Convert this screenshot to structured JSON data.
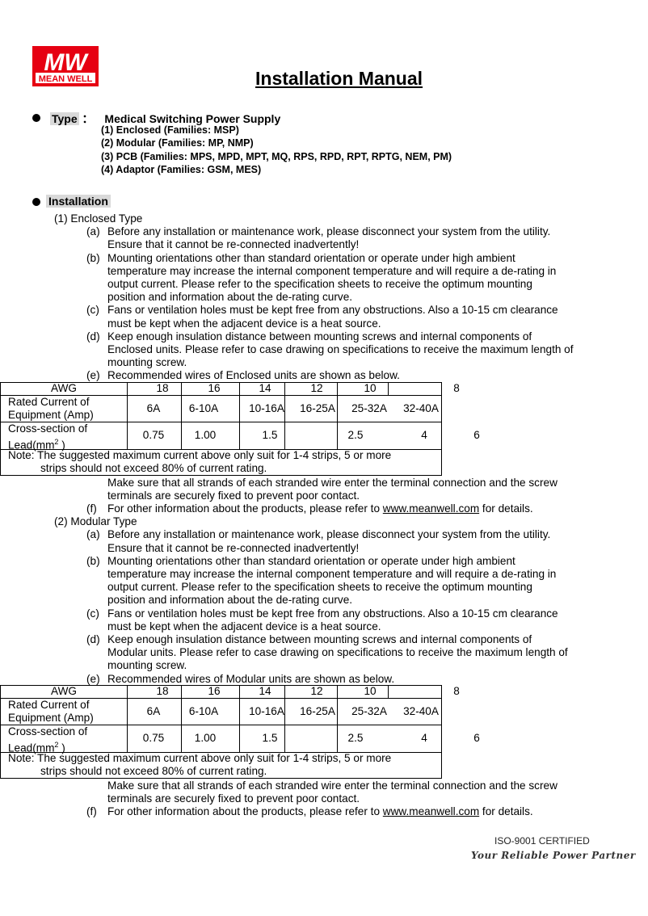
{
  "logo": {
    "text": "MW",
    "subtext": "MEAN WELL",
    "color": "#e60012"
  },
  "title": "Installation Manual",
  "type": {
    "label": "Type",
    "sep": "：",
    "value": "Medical Switching Power Supply",
    "items": [
      "(1)  Enclosed (Families: MSP)",
      "(2)  Modular (Families: MP, NMP)",
      "(3)   PCB (Families: MPS, MPD, MPT, MQ, RPS, RPD, RPT, RPTG, NEM, PM)",
      "(4)  Adaptor (Families: GSM, MES)"
    ]
  },
  "installation_label": "Installation",
  "sections": [
    {
      "heading": "(1)  Enclosed Type",
      "items": [
        {
          "label": "(a)",
          "lines": [
            "Before any installation or maintenance work, please disconnect your system from the utility.",
            "Ensure that it cannot be re-connected inadvertently!"
          ]
        },
        {
          "label": "(b)",
          "lines": [
            "Mounting orientations other than standard orientation or operate under high ambient",
            "temperature may increase the internal component temperature and will require a de-rating in",
            "output current. Please refer to the specification sheets to receive the optimum mounting",
            "position and information about the de-rating curve."
          ]
        },
        {
          "label": "(c)",
          "lines": [
            "Fans or ventilation holes must be kept free from any obstructions. Also a 10-15 cm clearance",
            "must be kept when the adjacent device is a heat source."
          ]
        },
        {
          "label": "(d)",
          "lines": [
            "Keep enough insulation distance between mounting screws and internal components of",
            "Enclosed units. Please refer to case drawing on specifications to receive the maximum length of",
            "mounting screw."
          ]
        },
        {
          "label": "(e)",
          "lines": [
            "Recommended wires of Enclosed units are shown as below."
          ]
        }
      ],
      "after_table": [
        "Make sure that all strands of each stranded wire enter the terminal connection and the screw",
        "terminals are securely fixed to prevent poor contact."
      ],
      "f": {
        "label": "(f)",
        "pre": "For other information about the products, please refer to ",
        "link": "www.meanwell.com",
        "post": " for details."
      }
    },
    {
      "heading": "(2)  Modular Type",
      "items": [
        {
          "label": "(a)",
          "lines": [
            "Before any installation or maintenance work, please disconnect your system from the utility.",
            "Ensure that it cannot be re-connected inadvertently!"
          ]
        },
        {
          "label": "(b)",
          "lines": [
            "Mounting orientations other than standard orientation or operate under high ambient",
            "temperature may increase the internal component temperature and will require a de-rating in",
            "output current. Please refer to the specification sheets to receive the optimum mounting",
            "position and information about the de-rating curve."
          ]
        },
        {
          "label": "(c)",
          "lines": [
            "Fans or ventilation holes must be kept free from any obstructions. Also a 10-15 cm clearance",
            "must be kept when the adjacent device is a heat source."
          ]
        },
        {
          "label": "(d)",
          "lines": [
            "Keep enough insulation distance between mounting screws and internal components of",
            "Modular units. Please refer to case drawing on specifications to receive the maximum length of",
            "mounting screw."
          ]
        },
        {
          "label": "(e)",
          "lines": [
            "Recommended wires of Modular units are shown as below."
          ]
        }
      ],
      "after_table": [
        "Make sure that all strands of each stranded wire enter the terminal connection and the screw",
        "terminals are securely fixed to prevent poor contact."
      ],
      "f": {
        "label": "(f)",
        "pre": "For other information about the products, please refer to ",
        "link": "www.meanwell.com",
        "post": " for details."
      }
    }
  ],
  "wire_table": {
    "awg_header": "AWG",
    "awg": [
      "18",
      "16",
      "14",
      "12",
      "10",
      "8"
    ],
    "current_header": [
      "Rated Current of",
      "Equipment (Amp)"
    ],
    "current": [
      "6A",
      "6-10A",
      "10-16A",
      "16-25A",
      "25-32A",
      "32-40A"
    ],
    "cross_header": [
      "Cross-section of",
      "Lead(mm",
      "2",
      " )"
    ],
    "cross": [
      "0.75",
      "1.00",
      "1.5",
      "2.5",
      "4",
      "6"
    ],
    "note": [
      "Note: The suggested maximum current above only suit for 1-4 strips, 5 or more",
      "strips should not exceed 80% of current rating."
    ]
  },
  "footer": {
    "iso": "ISO-9001 CERTIFIED",
    "slogan": "Your Reliable Power Partner"
  }
}
